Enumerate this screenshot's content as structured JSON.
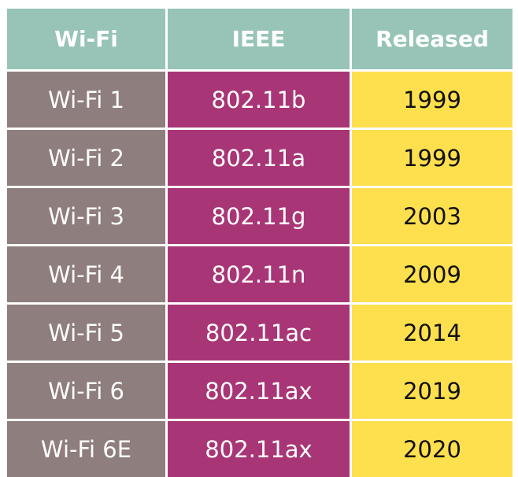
{
  "table": {
    "headers": [
      "Wi-Fi",
      "IEEE",
      "Released"
    ],
    "rows": [
      [
        "Wi-Fi 1",
        "802.11b",
        "1999"
      ],
      [
        "Wi-Fi 2",
        "802.11a",
        "1999"
      ],
      [
        "Wi-Fi 3",
        "802.11g",
        "2003"
      ],
      [
        "Wi-Fi 4",
        "802.11n",
        "2009"
      ],
      [
        "Wi-Fi 5",
        "802.11ac",
        "2014"
      ],
      [
        "Wi-Fi 6",
        "802.11ax",
        "2019"
      ],
      [
        "Wi-Fi 6E",
        "802.11ax",
        "2020"
      ]
    ]
  },
  "colors": {
    "header_bg": "#97c4b7",
    "wifi_column_bg": "#8f7e7e",
    "ieee_column_bg": "#a83676",
    "released_column_bg": "#fedf4e"
  }
}
